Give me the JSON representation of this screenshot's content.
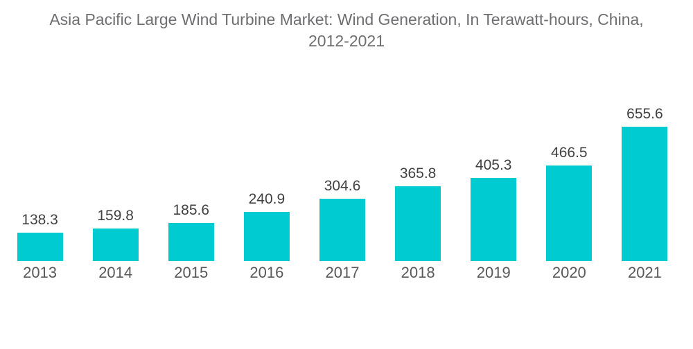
{
  "page": {
    "background_color": "#ffffff"
  },
  "chart_data": {
    "type": "bar",
    "title": "Asia Pacific Large Wind Turbine Market: Wind Generation, In Terawatt-hours, China, 2012-2021",
    "categories": [
      "2013",
      "2014",
      "2015",
      "2016",
      "2017",
      "2018",
      "2019",
      "2020",
      "2021"
    ],
    "values": [
      138.3,
      159.8,
      185.6,
      240.9,
      304.6,
      365.8,
      405.3,
      466.5,
      655.6
    ],
    "value_labels": [
      "138.3",
      "159.8",
      "185.6",
      "240.9",
      "304.6",
      "365.8",
      "405.3",
      "466.5",
      "655.6"
    ],
    "unit": "Terawatt-hours",
    "xlabel": "",
    "ylabel": "",
    "ylim": [
      0,
      700
    ],
    "grid": false,
    "legend": false,
    "axis_lines": "none",
    "data_label_position": "above-bar",
    "bar_color": "#00cbd1",
    "title_color": "#6d6e71",
    "value_label_color": "#414042",
    "category_label_color": "#58595b"
  }
}
